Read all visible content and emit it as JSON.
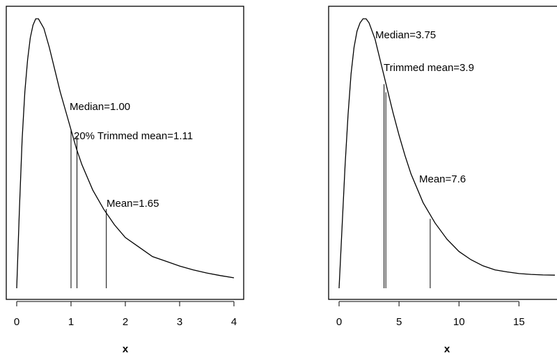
{
  "chart_data": [
    {
      "type": "line",
      "title": "",
      "xlabel": "x",
      "ylabel": "",
      "xlim": [
        0,
        4
      ],
      "xticks": [
        0,
        1,
        2,
        3,
        4
      ],
      "x_tick_labels": [
        "0",
        "1",
        "2",
        "3",
        "4"
      ],
      "grid": false,
      "series": [
        {
          "x": [
            0.0,
            0.05,
            0.1,
            0.15,
            0.2,
            0.25,
            0.3,
            0.35,
            0.4,
            0.5,
            0.6,
            0.7,
            0.8,
            0.9,
            1.0,
            1.1,
            1.2,
            1.4,
            1.6,
            1.8,
            2.0,
            2.25,
            2.5,
            2.75,
            3.0,
            3.25,
            3.5,
            3.75,
            4.0
          ],
          "y": [
            0.0,
            0.25,
            0.47,
            0.62,
            0.72,
            0.79,
            0.83,
            0.85,
            0.85,
            0.82,
            0.76,
            0.69,
            0.62,
            0.56,
            0.5,
            0.44,
            0.39,
            0.31,
            0.25,
            0.2,
            0.16,
            0.13,
            0.1,
            0.085,
            0.07,
            0.058,
            0.048,
            0.04,
            0.033
          ]
        }
      ],
      "markers": [
        {
          "x": 1.0,
          "y": 0.5,
          "label": "Median=1.00"
        },
        {
          "x": 1.11,
          "y": 0.48,
          "label": "20% Trimmed mean=1.11"
        },
        {
          "x": 1.65,
          "y": 0.25,
          "label": "Mean=1.65"
        }
      ]
    },
    {
      "type": "line",
      "title": "",
      "xlabel": "x",
      "ylabel": "",
      "xlim": [
        0,
        18
      ],
      "xticks": [
        0,
        5,
        10,
        15
      ],
      "x_tick_labels": [
        "0",
        "5",
        "10",
        "15"
      ],
      "grid": false,
      "series": [
        {
          "x": [
            0.0,
            0.25,
            0.5,
            0.75,
            1.0,
            1.25,
            1.5,
            1.75,
            2.0,
            2.25,
            2.5,
            3.0,
            3.5,
            4.0,
            4.5,
            5.0,
            5.5,
            6.0,
            7.0,
            8.0,
            9.0,
            10.0,
            11.0,
            12.0,
            13.0,
            14.0,
            15.0,
            16.0,
            17.0,
            18.0
          ],
          "y": [
            0.0,
            0.03,
            0.06,
            0.085,
            0.105,
            0.118,
            0.126,
            0.13,
            0.132,
            0.132,
            0.13,
            0.122,
            0.11,
            0.098,
            0.086,
            0.075,
            0.065,
            0.056,
            0.042,
            0.032,
            0.024,
            0.018,
            0.014,
            0.011,
            0.009,
            0.008,
            0.0072,
            0.0068,
            0.0065,
            0.0064
          ]
        }
      ],
      "markers": [
        {
          "x": 3.75,
          "y": 0.1,
          "label": "Median=3.75"
        },
        {
          "x": 3.9,
          "y": 0.096,
          "label": "Trimmed mean=3.9"
        },
        {
          "x": 7.6,
          "y": 0.034,
          "label": "Mean=7.6"
        }
      ]
    }
  ]
}
